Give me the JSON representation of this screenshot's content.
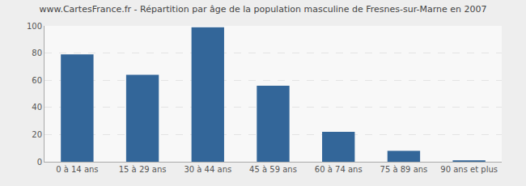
{
  "chart_data": {
    "type": "bar",
    "title": "www.CartesFrance.fr - Répartition par âge de la population masculine de Fresnes-sur-Marne en 2007",
    "categories": [
      "0 à 14 ans",
      "15 à 29 ans",
      "30 à 44 ans",
      "45 à 59 ans",
      "60 à 74 ans",
      "75 à 89 ans",
      "90 ans et plus"
    ],
    "values": [
      79,
      64,
      99,
      56,
      22,
      8,
      1
    ],
    "color": "#336699",
    "ylim": [
      0,
      100
    ],
    "yticks": [
      0,
      20,
      40,
      60,
      80,
      100
    ],
    "grid": true
  }
}
